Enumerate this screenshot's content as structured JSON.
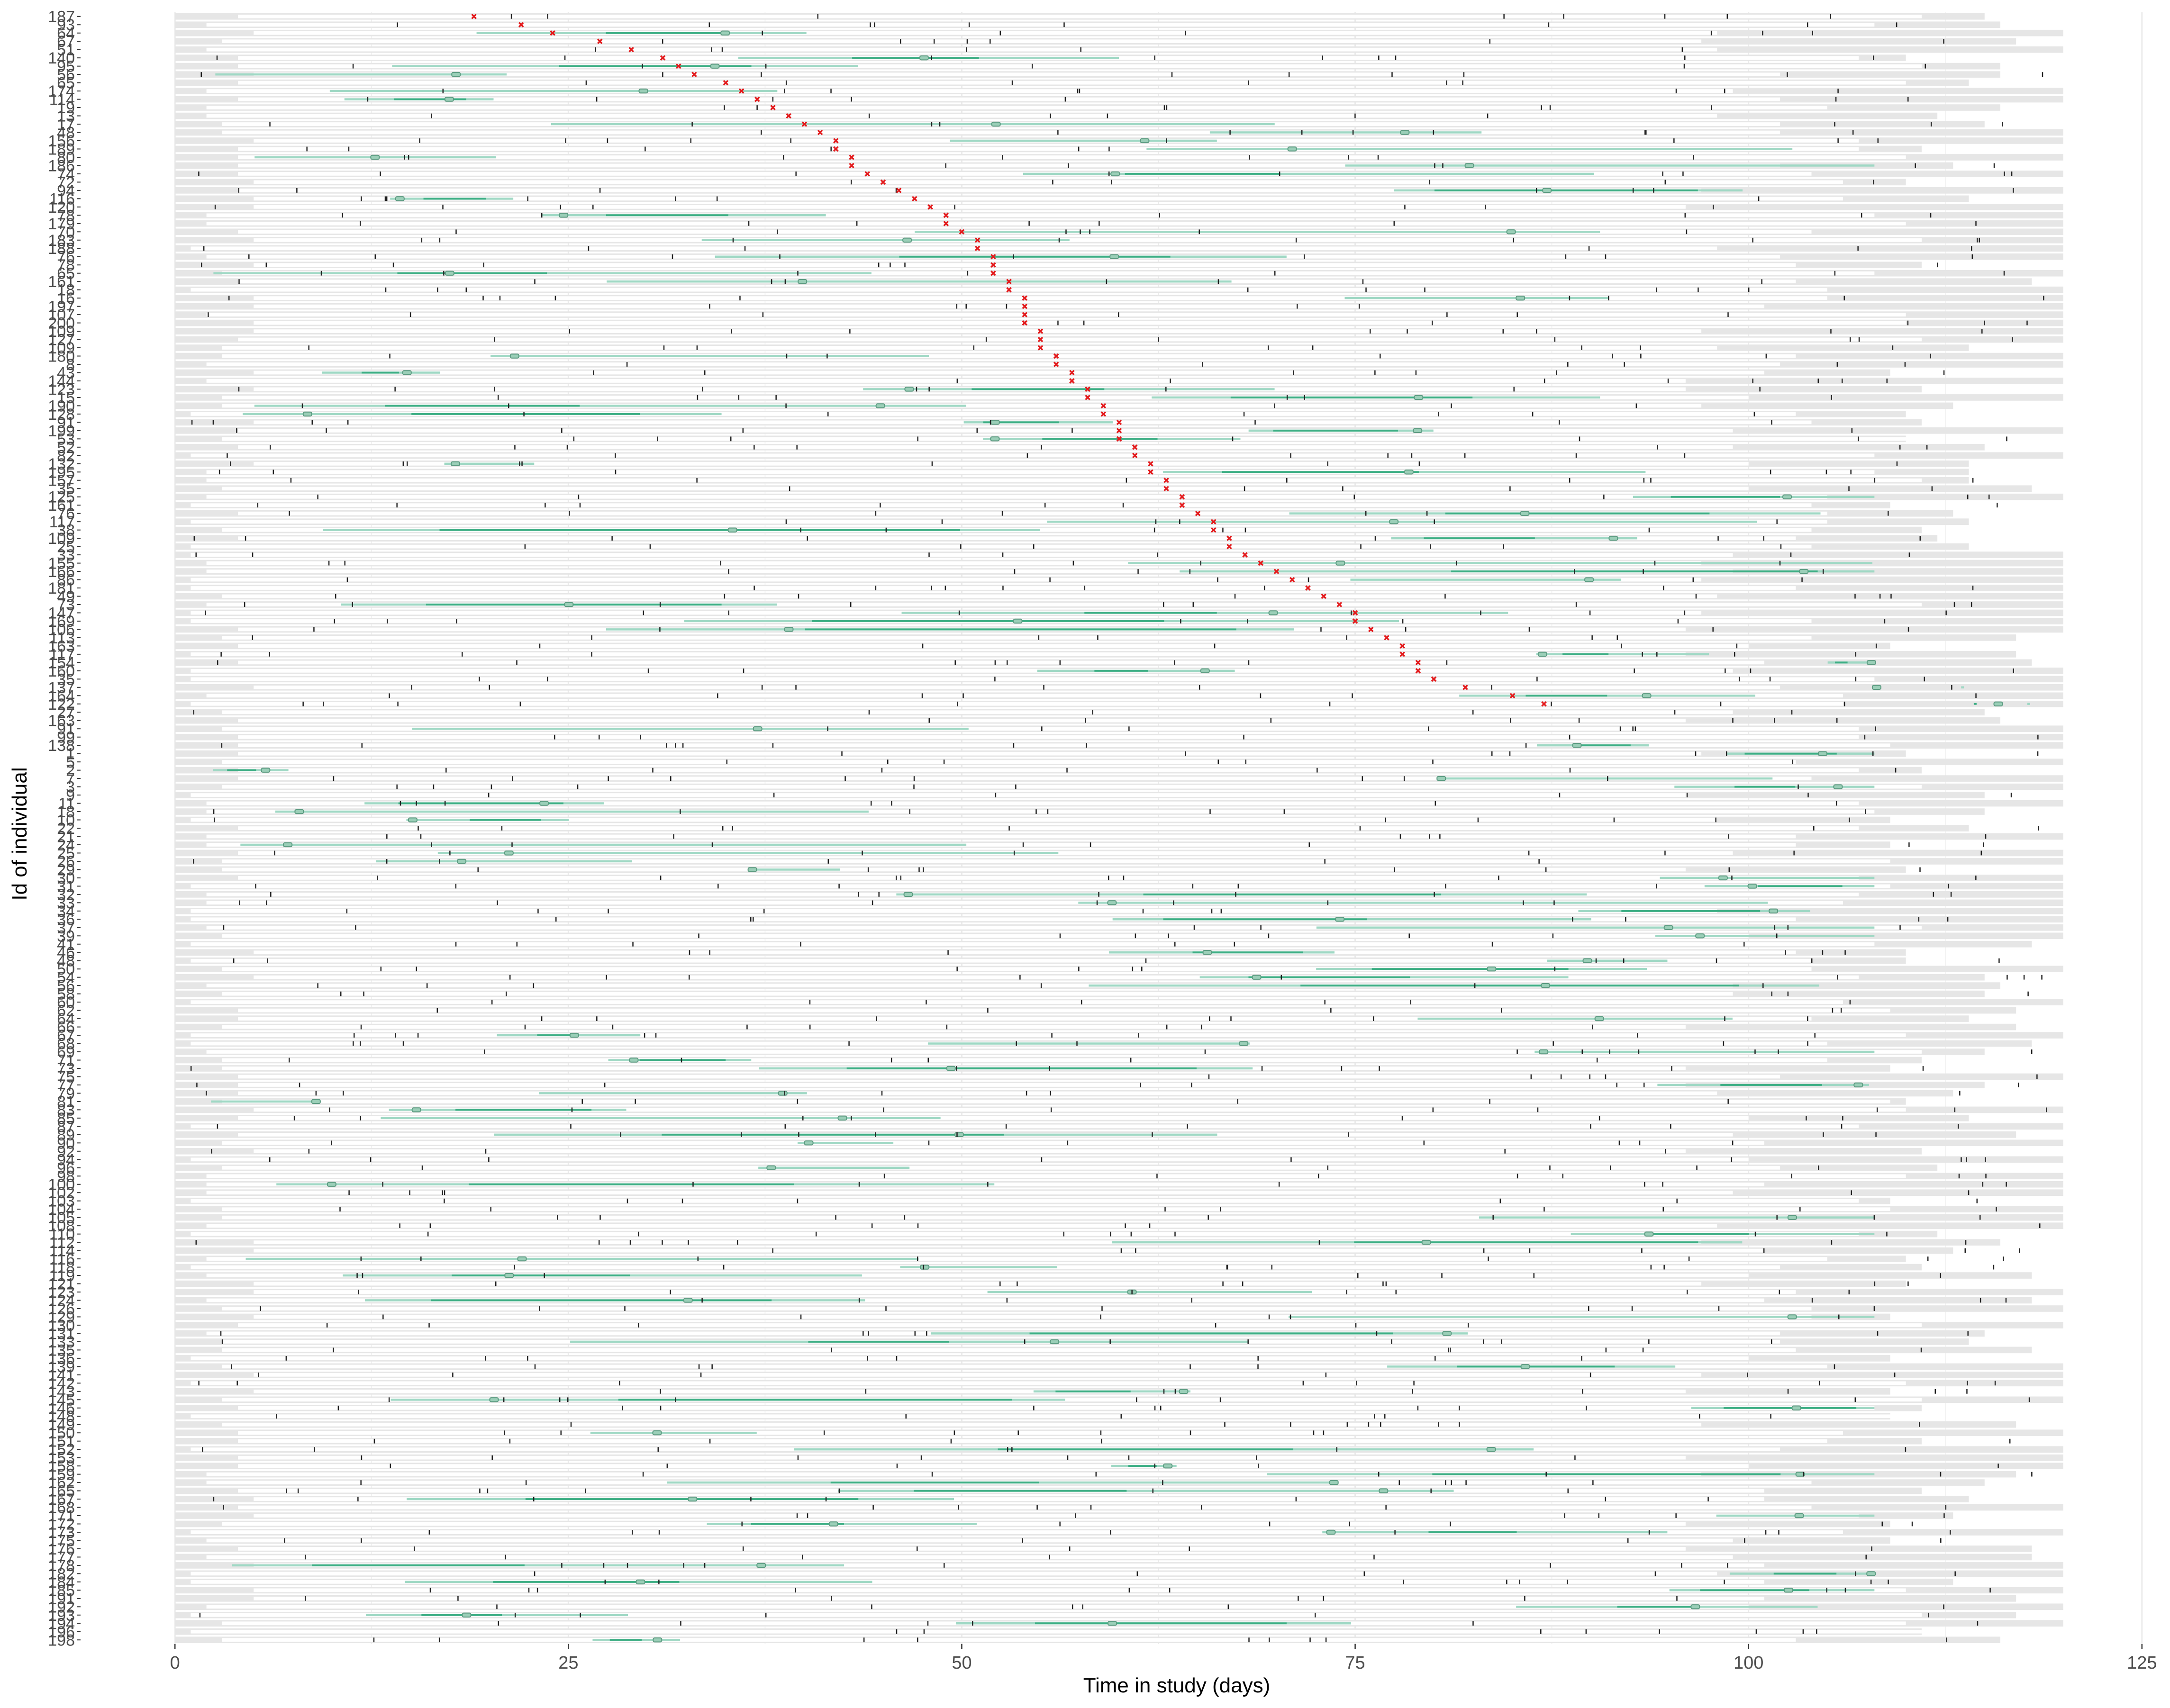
{
  "chart_data": {
    "type": "timeline",
    "xlabel": "Time in study (days)",
    "ylabel": "Id of individual",
    "xlim": [
      -6,
      126
    ],
    "x_ticks": [
      0,
      25,
      50,
      75,
      100,
      125
    ],
    "x_tick_labels": [
      "0",
      "25",
      "50",
      "75",
      "100",
      "125"
    ],
    "grid": true,
    "legend": "none",
    "colors": {
      "background_band": "#e6e6e6",
      "observation_bar": "#ffffff",
      "interval_light": "#9fd8c4",
      "interval_dark": "#3dae84",
      "event_marker": "#e31a1c",
      "tick_mark": "#222222",
      "axis_text": "#4d4d4d"
    },
    "y_labels": [
      "187",
      "93",
      "64",
      "67",
      "51",
      "140",
      "95",
      "56",
      "65",
      "174",
      "114",
      "19",
      "13",
      "17",
      "48",
      "156",
      "189",
      "80",
      "186",
      "74",
      "72",
      "94",
      "116",
      "120",
      "78",
      "179",
      "70",
      "183",
      "188",
      "76",
      "78",
      "65",
      "161",
      "18",
      "16",
      "197",
      "107",
      "200",
      "109",
      "127",
      "109",
      "180",
      "8",
      "43",
      "144",
      "123",
      "15",
      "190",
      "128",
      "91",
      "199",
      "53",
      "52",
      "82",
      "132",
      "195",
      "157",
      "35",
      "125",
      "161",
      "76",
      "117",
      "38",
      "109",
      "25",
      "33",
      "155",
      "166",
      "86",
      "181",
      "49",
      "73",
      "147",
      "169",
      "106",
      "113",
      "163",
      "117",
      "154",
      "160",
      "35",
      "137",
      "164",
      "122",
      "27",
      "163",
      "91",
      "99",
      "138",
      "1",
      "5",
      "2",
      "7",
      "3",
      "9",
      "11",
      "18",
      "10",
      "22",
      "21",
      "24",
      "25",
      "26",
      "29",
      "30",
      "31",
      "32",
      "33",
      "34",
      "36",
      "37",
      "39",
      "41",
      "46",
      "48",
      "50",
      "54",
      "56",
      "58",
      "60",
      "62",
      "64",
      "66",
      "67",
      "68",
      "69",
      "71",
      "73",
      "75",
      "77",
      "79",
      "81",
      "83",
      "85",
      "87",
      "89",
      "90",
      "92",
      "94",
      "96",
      "98",
      "100",
      "102",
      "103",
      "104",
      "105",
      "108",
      "110",
      "112",
      "114",
      "116",
      "118",
      "119",
      "121",
      "123",
      "124",
      "126",
      "129",
      "130",
      "131",
      "133",
      "135",
      "136",
      "139",
      "141",
      "142",
      "143",
      "145",
      "146",
      "148",
      "149",
      "150",
      "151",
      "152",
      "153",
      "158",
      "159",
      "162",
      "165",
      "167",
      "168",
      "171",
      "172",
      "173",
      "175",
      "176",
      "177",
      "178",
      "182",
      "184",
      "185",
      "191",
      "192",
      "193",
      "194",
      "196",
      "198"
    ],
    "individuals_with_event_count": 84,
    "event_day_anchors": {
      "row": [
        0,
        1,
        5,
        10,
        15,
        18,
        22,
        26,
        30,
        35,
        40,
        45,
        50,
        55,
        60,
        65,
        70,
        75,
        80,
        83
      ],
      "day": [
        19,
        22,
        31,
        37,
        42,
        43,
        47,
        50,
        52,
        54,
        55,
        58,
        60,
        62,
        65,
        68,
        73,
        77,
        80,
        87
      ]
    },
    "study_end_day": 120,
    "notes": []
  }
}
